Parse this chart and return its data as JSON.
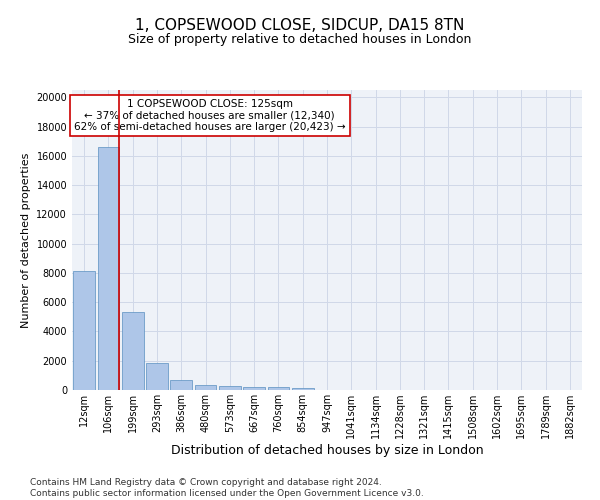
{
  "title1": "1, COPSEWOOD CLOSE, SIDCUP, DA15 8TN",
  "title2": "Size of property relative to detached houses in London",
  "xlabel": "Distribution of detached houses by size in London",
  "ylabel": "Number of detached properties",
  "categories": [
    "12sqm",
    "106sqm",
    "199sqm",
    "293sqm",
    "386sqm",
    "480sqm",
    "573sqm",
    "667sqm",
    "760sqm",
    "854sqm",
    "947sqm",
    "1041sqm",
    "1134sqm",
    "1228sqm",
    "1321sqm",
    "1415sqm",
    "1508sqm",
    "1602sqm",
    "1695sqm",
    "1789sqm",
    "1882sqm"
  ],
  "values": [
    8100,
    16600,
    5300,
    1850,
    700,
    370,
    280,
    200,
    175,
    150,
    0,
    0,
    0,
    0,
    0,
    0,
    0,
    0,
    0,
    0,
    0
  ],
  "bar_color": "#aec6e8",
  "bar_edge_color": "#5a8fc0",
  "marker_color": "#cc0000",
  "annotation_text": "1 COPSEWOOD CLOSE: 125sqm\n← 37% of detached houses are smaller (12,340)\n62% of semi-detached houses are larger (20,423) →",
  "annotation_box_color": "#ffffff",
  "annotation_box_edge_color": "#cc0000",
  "ylim": [
    0,
    20500
  ],
  "yticks": [
    0,
    2000,
    4000,
    6000,
    8000,
    10000,
    12000,
    14000,
    16000,
    18000,
    20000
  ],
  "grid_color": "#d0d8e8",
  "background_color": "#eef2f8",
  "footnote": "Contains HM Land Registry data © Crown copyright and database right 2024.\nContains public sector information licensed under the Open Government Licence v3.0.",
  "title1_fontsize": 11,
  "title2_fontsize": 9,
  "xlabel_fontsize": 9,
  "ylabel_fontsize": 8,
  "tick_fontsize": 7,
  "annotation_fontsize": 7.5,
  "footnote_fontsize": 6.5
}
